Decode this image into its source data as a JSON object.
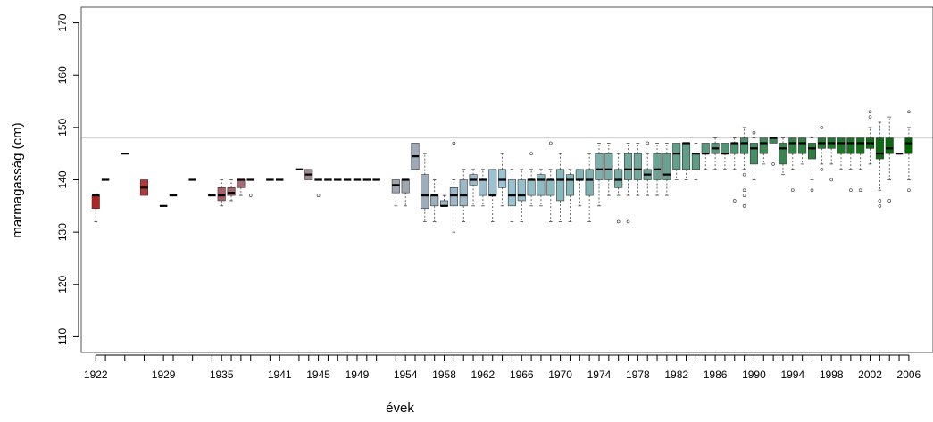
{
  "chart_data": {
    "type": "boxplot",
    "title": "",
    "xlabel": "évek",
    "ylabel": "marmagasság (cm)",
    "ylim": [
      107,
      173
    ],
    "y_ticks": [
      110,
      120,
      130,
      140,
      150,
      160,
      170
    ],
    "x_tick_labels": [
      "1922",
      "1929",
      "1935",
      "1941",
      "1945",
      "1949",
      "1954",
      "1958",
      "1962",
      "1966",
      "1970",
      "1974",
      "1978",
      "1982",
      "1986",
      "1990",
      "1994",
      "1998",
      "2002",
      "2006"
    ],
    "reference_line": 148,
    "grid": false,
    "legend": "none",
    "colors": {
      "frame": "#555555",
      "reference_line": "#cccccc",
      "median": "#000000",
      "whisker": "#444444",
      "palette_stops": [
        "#b22222",
        "#a08890",
        "#9cc4d4",
        "#5a9a80",
        "#006400"
      ]
    },
    "boxes": [
      {
        "year": 1922,
        "q1": 134.5,
        "median": 137,
        "q3": 137,
        "lo": 132,
        "hi": 137
      },
      {
        "year": 1923,
        "q1": 140,
        "median": 140,
        "q3": 140,
        "lo": 140,
        "hi": 140
      },
      {
        "year": 1925,
        "q1": 145,
        "median": 145,
        "q3": 145,
        "lo": 145,
        "hi": 145
      },
      {
        "year": 1927,
        "q1": 137,
        "median": 138.5,
        "q3": 140,
        "lo": 137,
        "hi": 140
      },
      {
        "year": 1929,
        "q1": 135,
        "median": 135,
        "q3": 135,
        "lo": 135,
        "hi": 135
      },
      {
        "year": 1930,
        "q1": 137,
        "median": 137,
        "q3": 137,
        "lo": 137,
        "hi": 137
      },
      {
        "year": 1932,
        "q1": 140,
        "median": 140,
        "q3": 140,
        "lo": 140,
        "hi": 140
      },
      {
        "year": 1934,
        "q1": 137,
        "median": 137,
        "q3": 137,
        "lo": 137,
        "hi": 137
      },
      {
        "year": 1935,
        "q1": 136,
        "median": 137,
        "q3": 138.5,
        "lo": 135,
        "hi": 140
      },
      {
        "year": 1936,
        "q1": 137,
        "median": 137.5,
        "q3": 138.5,
        "lo": 136,
        "hi": 140
      },
      {
        "year": 1937,
        "q1": 138.5,
        "median": 140,
        "q3": 140,
        "lo": 137,
        "hi": 140
      },
      {
        "year": 1938,
        "q1": 140,
        "median": 140,
        "q3": 140,
        "lo": 140,
        "hi": 140,
        "outliers": [
          137
        ]
      },
      {
        "year": 1940,
        "q1": 140,
        "median": 140,
        "q3": 140,
        "lo": 140,
        "hi": 140
      },
      {
        "year": 1941,
        "q1": 140,
        "median": 140,
        "q3": 140,
        "lo": 140,
        "hi": 140
      },
      {
        "year": 1943,
        "q1": 142,
        "median": 142,
        "q3": 142,
        "lo": 142,
        "hi": 142
      },
      {
        "year": 1944,
        "q1": 140,
        "median": 141,
        "q3": 142,
        "lo": 140,
        "hi": 142
      },
      {
        "year": 1945,
        "q1": 140,
        "median": 140,
        "q3": 140,
        "lo": 140,
        "hi": 140,
        "outliers": [
          137
        ]
      },
      {
        "year": 1946,
        "q1": 140,
        "median": 140,
        "q3": 140,
        "lo": 140,
        "hi": 140
      },
      {
        "year": 1947,
        "q1": 140,
        "median": 140,
        "q3": 140,
        "lo": 140,
        "hi": 140
      },
      {
        "year": 1948,
        "q1": 140,
        "median": 140,
        "q3": 140,
        "lo": 140,
        "hi": 140
      },
      {
        "year": 1949,
        "q1": 140,
        "median": 140,
        "q3": 140,
        "lo": 140,
        "hi": 140
      },
      {
        "year": 1950,
        "q1": 140,
        "median": 140,
        "q3": 140,
        "lo": 140,
        "hi": 140
      },
      {
        "year": 1951,
        "q1": 140,
        "median": 140,
        "q3": 140,
        "lo": 140,
        "hi": 140
      },
      {
        "year": 1953,
        "q1": 137.5,
        "median": 139,
        "q3": 140,
        "lo": 135,
        "hi": 140
      },
      {
        "year": 1954,
        "q1": 137.5,
        "median": 140,
        "q3": 140,
        "lo": 135,
        "hi": 140
      },
      {
        "year": 1955,
        "q1": 142,
        "median": 144.5,
        "q3": 147,
        "lo": 142,
        "hi": 147
      },
      {
        "year": 1956,
        "q1": 134.5,
        "median": 137,
        "q3": 141,
        "lo": 132,
        "hi": 145
      },
      {
        "year": 1957,
        "q1": 135,
        "median": 137,
        "q3": 137,
        "lo": 132,
        "hi": 140
      },
      {
        "year": 1958,
        "q1": 135,
        "median": 135,
        "q3": 136,
        "lo": 135,
        "hi": 137
      },
      {
        "year": 1959,
        "q1": 135,
        "median": 137,
        "q3": 138.5,
        "lo": 130,
        "hi": 140,
        "outliers": [
          147
        ]
      },
      {
        "year": 1960,
        "q1": 135,
        "median": 137,
        "q3": 140,
        "lo": 132,
        "hi": 142
      },
      {
        "year": 1961,
        "q1": 139,
        "median": 140,
        "q3": 141,
        "lo": 135,
        "hi": 142
      },
      {
        "year": 1962,
        "q1": 137,
        "median": 140,
        "q3": 140,
        "lo": 135,
        "hi": 142
      },
      {
        "year": 1963,
        "q1": 137,
        "median": 137,
        "q3": 142,
        "lo": 132,
        "hi": 142
      },
      {
        "year": 1964,
        "q1": 138.5,
        "median": 140,
        "q3": 142,
        "lo": 135,
        "hi": 145
      },
      {
        "year": 1965,
        "q1": 135,
        "median": 137,
        "q3": 140,
        "lo": 132,
        "hi": 142
      },
      {
        "year": 1966,
        "q1": 136,
        "median": 137,
        "q3": 140,
        "lo": 132,
        "hi": 142
      },
      {
        "year": 1967,
        "q1": 137,
        "median": 140,
        "q3": 140,
        "lo": 135,
        "hi": 142,
        "outliers": [
          145
        ]
      },
      {
        "year": 1968,
        "q1": 137,
        "median": 140,
        "q3": 141,
        "lo": 135,
        "hi": 142
      },
      {
        "year": 1969,
        "q1": 137,
        "median": 140,
        "q3": 140,
        "lo": 132,
        "hi": 142,
        "outliers": [
          147
        ]
      },
      {
        "year": 1970,
        "q1": 136,
        "median": 140,
        "q3": 142,
        "lo": 132,
        "hi": 145
      },
      {
        "year": 1971,
        "q1": 137,
        "median": 140,
        "q3": 141,
        "lo": 132,
        "hi": 142
      },
      {
        "year": 1972,
        "q1": 140,
        "median": 140,
        "q3": 142,
        "lo": 135,
        "hi": 142
      },
      {
        "year": 1973,
        "q1": 137,
        "median": 140,
        "q3": 142,
        "lo": 132,
        "hi": 145
      },
      {
        "year": 1974,
        "q1": 140,
        "median": 142,
        "q3": 145,
        "lo": 135,
        "hi": 147
      },
      {
        "year": 1975,
        "q1": 140,
        "median": 142,
        "q3": 145,
        "lo": 137,
        "hi": 147
      },
      {
        "year": 1976,
        "q1": 138.5,
        "median": 140,
        "q3": 142,
        "lo": 137,
        "hi": 145,
        "outliers": [
          132
        ]
      },
      {
        "year": 1977,
        "q1": 140,
        "median": 142,
        "q3": 145,
        "lo": 137,
        "hi": 147,
        "outliers": [
          132
        ]
      },
      {
        "year": 1978,
        "q1": 140,
        "median": 142,
        "q3": 145,
        "lo": 137,
        "hi": 147
      },
      {
        "year": 1979,
        "q1": 140,
        "median": 141,
        "q3": 142,
        "lo": 137,
        "hi": 145,
        "outliers": [
          147
        ]
      },
      {
        "year": 1980,
        "q1": 140,
        "median": 142,
        "q3": 145,
        "lo": 137,
        "hi": 147
      },
      {
        "year": 1981,
        "q1": 140,
        "median": 141,
        "q3": 145,
        "lo": 137,
        "hi": 147
      },
      {
        "year": 1982,
        "q1": 142,
        "median": 145,
        "q3": 147,
        "lo": 140,
        "hi": 147
      },
      {
        "year": 1983,
        "q1": 142,
        "median": 147,
        "q3": 147,
        "lo": 140,
        "hi": 147
      },
      {
        "year": 1984,
        "q1": 142,
        "median": 145,
        "q3": 145,
        "lo": 140,
        "hi": 147
      },
      {
        "year": 1985,
        "q1": 145,
        "median": 145,
        "q3": 147,
        "lo": 142,
        "hi": 147
      },
      {
        "year": 1986,
        "q1": 145,
        "median": 146,
        "q3": 147,
        "lo": 142,
        "hi": 148
      },
      {
        "year": 1987,
        "q1": 145,
        "median": 145,
        "q3": 147,
        "lo": 142,
        "hi": 147
      },
      {
        "year": 1988,
        "q1": 145,
        "median": 147,
        "q3": 147,
        "lo": 142,
        "hi": 148,
        "outliers": [
          136
        ]
      },
      {
        "year": 1989,
        "q1": 145,
        "median": 147,
        "q3": 148,
        "lo": 142,
        "hi": 150,
        "outliers": [
          141,
          138,
          137,
          135
        ]
      },
      {
        "year": 1990,
        "q1": 143,
        "median": 146,
        "q3": 147,
        "lo": 140,
        "hi": 148,
        "outliers": [
          149
        ]
      },
      {
        "year": 1991,
        "q1": 145,
        "median": 147,
        "q3": 148,
        "lo": 143,
        "hi": 148
      },
      {
        "year": 1992,
        "q1": 147,
        "median": 148,
        "q3": 148,
        "lo": 147,
        "hi": 148,
        "outliers": [
          143
        ]
      },
      {
        "year": 1993,
        "q1": 143,
        "median": 146,
        "q3": 147,
        "lo": 141,
        "hi": 148
      },
      {
        "year": 1994,
        "q1": 145,
        "median": 147,
        "q3": 148,
        "lo": 142,
        "hi": 148,
        "outliers": [
          138
        ]
      },
      {
        "year": 1995,
        "q1": 145,
        "median": 147,
        "q3": 148,
        "lo": 143,
        "hi": 148
      },
      {
        "year": 1996,
        "q1": 144,
        "median": 146,
        "q3": 147,
        "lo": 140,
        "hi": 148,
        "outliers": [
          138
        ]
      },
      {
        "year": 1997,
        "q1": 146,
        "median": 147,
        "q3": 148,
        "lo": 143,
        "hi": 148,
        "outliers": [
          150,
          142
        ]
      },
      {
        "year": 1998,
        "q1": 146,
        "median": 147,
        "q3": 148,
        "lo": 143,
        "hi": 148,
        "outliers": [
          140
        ]
      },
      {
        "year": 1999,
        "q1": 145,
        "median": 147,
        "q3": 148,
        "lo": 142,
        "hi": 148
      },
      {
        "year": 2000,
        "q1": 145,
        "median": 147,
        "q3": 148,
        "lo": 142,
        "hi": 148,
        "outliers": [
          138
        ]
      },
      {
        "year": 2001,
        "q1": 145,
        "median": 147,
        "q3": 148,
        "lo": 142,
        "hi": 148,
        "outliers": [
          138
        ]
      },
      {
        "year": 2002,
        "q1": 146,
        "median": 147,
        "q3": 148,
        "lo": 143,
        "hi": 150,
        "outliers": [
          153,
          152
        ]
      },
      {
        "year": 2003,
        "q1": 144,
        "median": 145,
        "q3": 148,
        "lo": 138,
        "hi": 151,
        "outliers": [
          136,
          135
        ]
      },
      {
        "year": 2004,
        "q1": 145,
        "median": 146,
        "q3": 148,
        "lo": 140,
        "hi": 152,
        "outliers": [
          136
        ]
      },
      {
        "year": 2005,
        "q1": 145,
        "median": 145,
        "q3": 145,
        "lo": 145,
        "hi": 145
      },
      {
        "year": 2006,
        "q1": 145,
        "median": 147,
        "q3": 148,
        "lo": 140,
        "hi": 150,
        "outliers": [
          153,
          138
        ]
      }
    ]
  }
}
